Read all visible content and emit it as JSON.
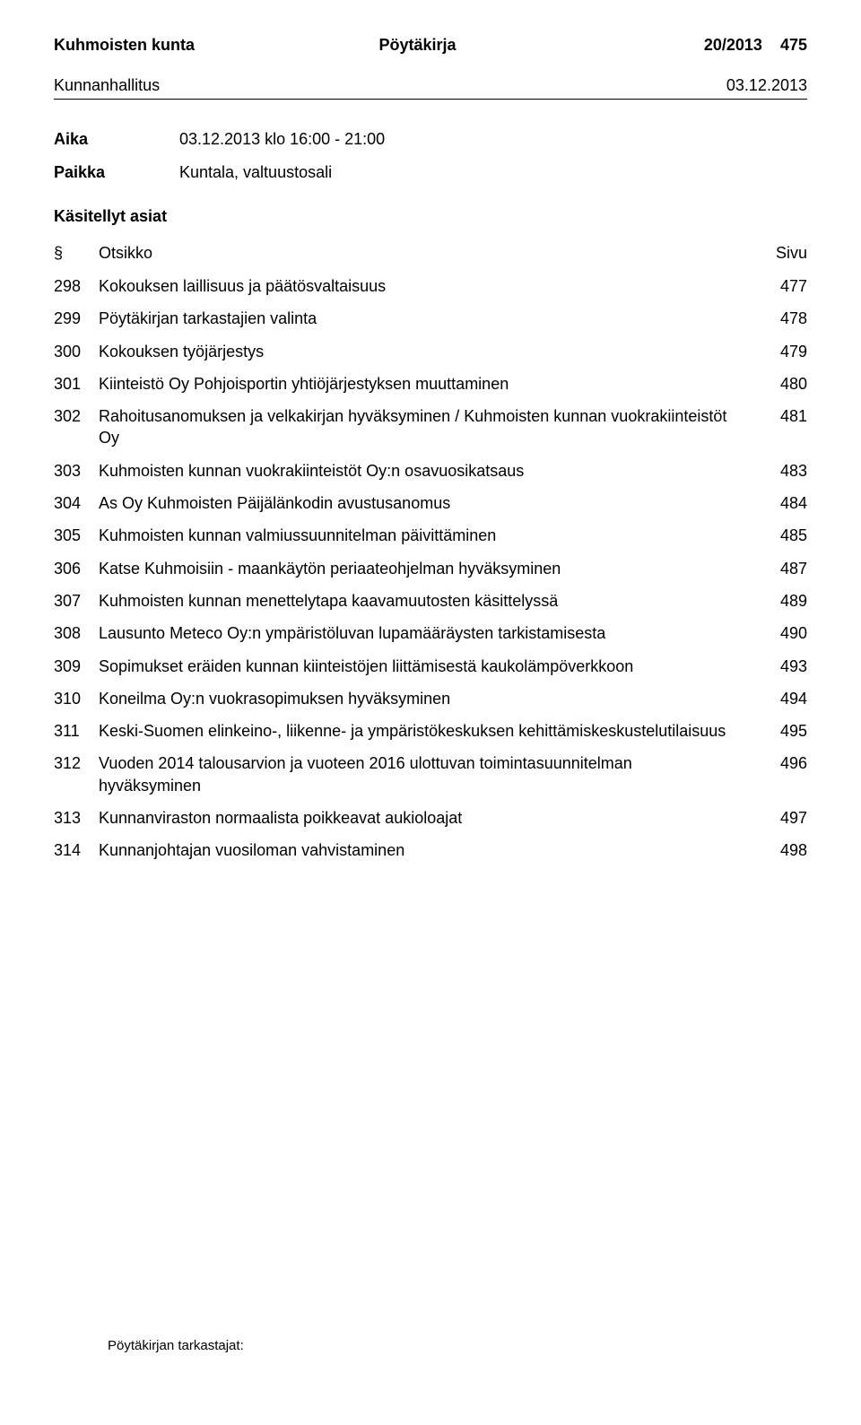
{
  "header": {
    "municipality": "Kuhmoisten kunta",
    "doc_type": "Pöytäkirja",
    "doc_number": "20/2013",
    "page_number": "475"
  },
  "subheader": {
    "body": "Kunnanhallitus",
    "date": "03.12.2013"
  },
  "meta": {
    "time_label": "Aika",
    "time_value": "03.12.2013 klo 16:00 - 21:00",
    "place_label": "Paikka",
    "place_value": "Kuntala, valtuustosali"
  },
  "section_label": "Käsitellyt asiat",
  "toc_header": {
    "sym": "§",
    "title": "Otsikko",
    "page": "Sivu"
  },
  "items": [
    {
      "num": "298",
      "title": "Kokouksen laillisuus ja päätösvaltaisuus",
      "page": "477"
    },
    {
      "num": "299",
      "title": "Pöytäkirjan tarkastajien valinta",
      "page": "478"
    },
    {
      "num": "300",
      "title": "Kokouksen työjärjestys",
      "page": "479"
    },
    {
      "num": "301",
      "title": "Kiinteistö Oy Pohjoisportin yhtiöjärjestyksen muuttaminen",
      "page": "480"
    },
    {
      "num": "302",
      "title": "Rahoitusanomuksen ja velkakirjan hyväksyminen / Kuhmoisten kunnan vuokrakiinteistöt Oy",
      "page": "481"
    },
    {
      "num": "303",
      "title": "Kuhmoisten kunnan vuokrakiinteistöt Oy:n osavuosikatsaus",
      "page": "483"
    },
    {
      "num": "304",
      "title": "As Oy Kuhmoisten Päijälänkodin avustusanomus",
      "page": "484"
    },
    {
      "num": "305",
      "title": "Kuhmoisten kunnan valmiussuunnitelman päivittäminen",
      "page": "485"
    },
    {
      "num": "306",
      "title": "Katse Kuhmoisiin - maankäytön periaateohjelman hyväksyminen",
      "page": "487"
    },
    {
      "num": "307",
      "title": "Kuhmoisten kunnan menettelytapa kaavamuutosten käsittelyssä",
      "page": "489"
    },
    {
      "num": "308",
      "title": "Lausunto Meteco Oy:n ympäristöluvan lupamääräysten tarkistamisesta",
      "page": "490"
    },
    {
      "num": "309",
      "title": "Sopimukset eräiden kunnan kiinteistöjen liittämisestä kaukolämpöverkkoon",
      "page": "493"
    },
    {
      "num": "310",
      "title": "Koneilma Oy:n vuokrasopimuksen hyväksyminen",
      "page": "494"
    },
    {
      "num": "311",
      "title": "Keski-Suomen elinkeino-, liikenne- ja ympäristökeskuksen kehittämiskeskustelutilaisuus",
      "page": "495"
    },
    {
      "num": "312",
      "title": "Vuoden 2014 talousarvion ja vuoteen 2016 ulottuvan toimintasuunnitelman hyväksyminen",
      "page": "496"
    },
    {
      "num": "313",
      "title": "Kunnanviraston normaalista poikkeavat aukioloajat",
      "page": "497"
    },
    {
      "num": "314",
      "title": "Kunnanjohtajan vuosiloman vahvistaminen",
      "page": "498"
    }
  ],
  "footer": "Pöytäkirjan tarkastajat:"
}
